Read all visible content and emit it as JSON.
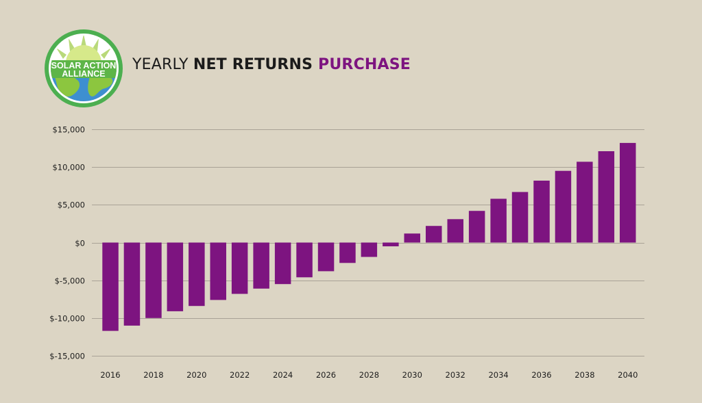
{
  "title": {
    "part1": "YEARLY ",
    "part2": "NET RETURNS ",
    "part3": "PURCHASE"
  },
  "logo": {
    "line1": "SOLAR ACTION",
    "line2": "ALLIANCE",
    "icon": "globe-sun-icon"
  },
  "colors": {
    "background": "#dcd5c4",
    "bar": "#7d1480",
    "grid": "#a9a296",
    "title_accent": "#7d1480",
    "logo_green": "#5db548",
    "logo_ring": "#4caf50"
  },
  "chart_data": {
    "type": "bar",
    "categories": [
      "2016",
      "2017",
      "2018",
      "2019",
      "2020",
      "2021",
      "2022",
      "2023",
      "2024",
      "2025",
      "2026",
      "2027",
      "2028",
      "2029",
      "2030",
      "2031",
      "2032",
      "2033",
      "2034",
      "2035",
      "2036",
      "2037",
      "2038",
      "2039",
      "2040"
    ],
    "x_tick_labels": [
      "2016",
      "2018",
      "2020",
      "2022",
      "2024",
      "2026",
      "2028",
      "2030",
      "2032",
      "2034",
      "2036",
      "2038",
      "2040"
    ],
    "values": [
      -11700,
      -11000,
      -10000,
      -9100,
      -8400,
      -7600,
      -6800,
      -6100,
      -5500,
      -4600,
      -3800,
      -2700,
      -1900,
      -500,
      1200,
      2200,
      3100,
      4200,
      5800,
      6700,
      8200,
      9500,
      10700,
      12100,
      13200
    ],
    "ylim": [
      -15000,
      15000
    ],
    "y_ticks": [
      15000,
      10000,
      5000,
      0,
      -5000,
      -10000,
      -15000
    ],
    "y_tick_labels": [
      "$15,000",
      "$10,000",
      "$5,000",
      "$0",
      "$-5,000",
      "$-10,000",
      "$-15,000"
    ],
    "grid": true,
    "legend": "none",
    "xlabel": "",
    "ylabel": ""
  }
}
